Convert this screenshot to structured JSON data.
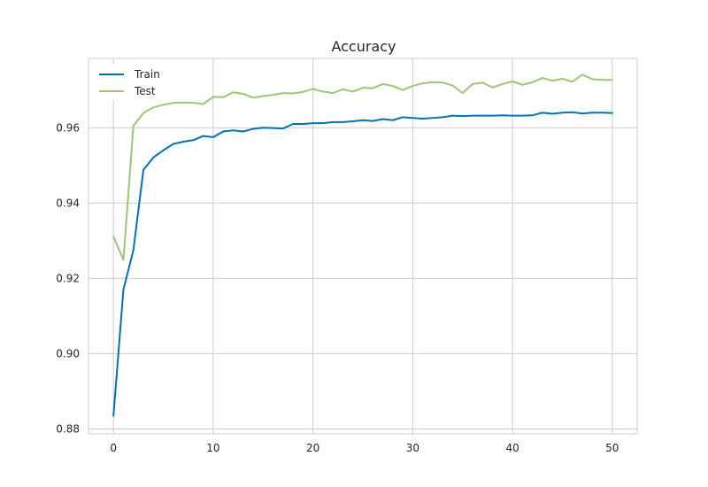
{
  "chart_data": {
    "type": "line",
    "title": "Accuracy",
    "xlabel": "",
    "ylabel": "",
    "xlim": [
      -2.5,
      52.5
    ],
    "ylim": [
      0.8787,
      0.9784
    ],
    "xticks": [
      0,
      10,
      20,
      30,
      40,
      50
    ],
    "yticks": [
      0.88,
      0.9,
      0.92,
      0.94,
      0.96
    ],
    "ytick_labels": [
      "0.88",
      "0.90",
      "0.92",
      "0.94",
      "0.96"
    ],
    "grid": true,
    "legend": "top-left",
    "x": [
      0,
      1,
      2,
      3,
      4,
      5,
      6,
      7,
      8,
      9,
      10,
      11,
      12,
      13,
      14,
      15,
      16,
      17,
      18,
      19,
      20,
      21,
      22,
      23,
      24,
      25,
      26,
      27,
      28,
      29,
      30,
      31,
      32,
      33,
      34,
      35,
      36,
      37,
      38,
      39,
      40,
      41,
      42,
      43,
      44,
      45,
      46,
      47,
      48,
      49,
      50
    ],
    "series": [
      {
        "name": "Train",
        "color": "#0072b2",
        "values": [
          0.8835,
          0.917,
          0.9275,
          0.9488,
          0.9521,
          0.954,
          0.9557,
          0.9563,
          0.9567,
          0.9578,
          0.9575,
          0.959,
          0.9593,
          0.959,
          0.9597,
          0.96,
          0.9599,
          0.9598,
          0.961,
          0.961,
          0.9612,
          0.9612,
          0.9615,
          0.9615,
          0.9617,
          0.962,
          0.9618,
          0.9623,
          0.962,
          0.9628,
          0.9626,
          0.9624,
          0.9626,
          0.9628,
          0.9632,
          0.9631,
          0.9632,
          0.9632,
          0.9632,
          0.9633,
          0.9632,
          0.9632,
          0.9633,
          0.964,
          0.9637,
          0.964,
          0.9641,
          0.9638,
          0.964,
          0.964,
          0.9639
        ]
      },
      {
        "name": "Test",
        "color": "#9bc57a",
        "values": [
          0.9311,
          0.9249,
          0.9605,
          0.9639,
          0.9654,
          0.9661,
          0.9666,
          0.9667,
          0.9666,
          0.9663,
          0.9682,
          0.9681,
          0.9694,
          0.969,
          0.968,
          0.9684,
          0.9687,
          0.9692,
          0.9691,
          0.9695,
          0.9703,
          0.9696,
          0.9692,
          0.9702,
          0.9696,
          0.9706,
          0.9705,
          0.9716,
          0.9711,
          0.97,
          0.9711,
          0.9718,
          0.9721,
          0.972,
          0.9712,
          0.9692,
          0.9716,
          0.972,
          0.9707,
          0.9716,
          0.9723,
          0.9714,
          0.9721,
          0.9732,
          0.9725,
          0.973,
          0.9722,
          0.9741,
          0.9729,
          0.9727,
          0.9727
        ]
      }
    ]
  }
}
